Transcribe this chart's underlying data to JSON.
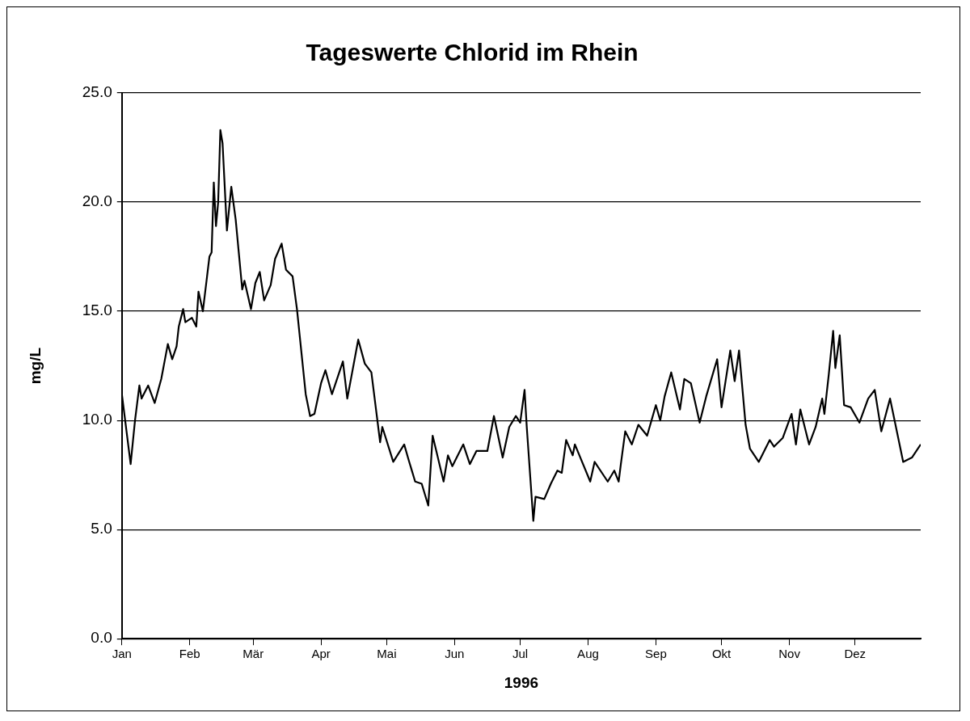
{
  "chart_data": {
    "type": "line",
    "title": "Tageswerte Chlorid im Rhein",
    "xlabel": "1996",
    "ylabel": "mg/L",
    "xlim": [
      "1996-01-01",
      "1996-12-31"
    ],
    "xticks": [
      {
        "value": "1996-01-01",
        "label": "Jan"
      },
      {
        "value": "1996-02-01",
        "label": "Feb"
      },
      {
        "value": "1996-03-01",
        "label": "Mär"
      },
      {
        "value": "1996-04-01",
        "label": "Apr"
      },
      {
        "value": "1996-05-01",
        "label": "Mai"
      },
      {
        "value": "1996-06-01",
        "label": "Jun"
      },
      {
        "value": "1996-07-01",
        "label": "Jul"
      },
      {
        "value": "1996-08-01",
        "label": "Aug"
      },
      {
        "value": "1996-09-01",
        "label": "Sep"
      },
      {
        "value": "1996-10-01",
        "label": "Okt"
      },
      {
        "value": "1996-11-01",
        "label": "Nov"
      },
      {
        "value": "1996-12-01",
        "label": "Dez"
      }
    ],
    "ylim": [
      0,
      25
    ],
    "yticks": [
      {
        "value": 0,
        "label": "0.0"
      },
      {
        "value": 5,
        "label": "5.0"
      },
      {
        "value": 10,
        "label": "10.0"
      },
      {
        "value": 15,
        "label": "15.0"
      },
      {
        "value": 20,
        "label": "20.0"
      },
      {
        "value": 25,
        "label": "25.0"
      }
    ],
    "grid": "y",
    "legend": false,
    "marker": "none",
    "line_style": "solid",
    "series": [
      {
        "color": "#000000",
        "x": [
          "1996-01-01",
          "1996-01-05",
          "1996-01-07",
          "1996-01-09",
          "1996-01-10",
          "1996-01-13",
          "1996-01-16",
          "1996-01-19",
          "1996-01-22",
          "1996-01-24",
          "1996-01-26",
          "1996-01-27",
          "1996-01-29",
          "1996-01-30",
          "1996-02-02",
          "1996-02-04",
          "1996-02-05",
          "1996-02-07",
          "1996-02-10",
          "1996-02-11",
          "1996-02-12",
          "1996-02-13",
          "1996-02-14",
          "1996-02-15",
          "1996-02-16",
          "1996-02-18",
          "1996-02-19",
          "1996-02-20",
          "1996-02-22",
          "1996-02-25",
          "1996-02-26",
          "1996-02-29",
          "1996-03-02",
          "1996-03-04",
          "1996-03-06",
          "1996-03-09",
          "1996-03-11",
          "1996-03-14",
          "1996-03-16",
          "1996-03-19",
          "1996-03-21",
          "1996-03-25",
          "1996-03-27",
          "1996-03-29",
          "1996-04-01",
          "1996-04-03",
          "1996-04-06",
          "1996-04-11",
          "1996-04-13",
          "1996-04-18",
          "1996-04-21",
          "1996-04-24",
          "1996-04-28",
          "1996-04-29",
          "1996-05-04",
          "1996-05-09",
          "1996-05-11",
          "1996-05-14",
          "1996-05-17",
          "1996-05-20",
          "1996-05-22",
          "1996-05-27",
          "1996-05-29",
          "1996-05-31",
          "1996-06-05",
          "1996-06-08",
          "1996-06-11",
          "1996-06-16",
          "1996-06-19",
          "1996-06-23",
          "1996-06-26",
          "1996-06-29",
          "1996-07-01",
          "1996-07-03",
          "1996-07-04",
          "1996-07-07",
          "1996-07-08",
          "1996-07-12",
          "1996-07-15",
          "1996-07-18",
          "1996-07-20",
          "1996-07-22",
          "1996-07-25",
          "1996-07-26",
          "1996-08-02",
          "1996-08-04",
          "1996-08-10",
          "1996-08-13",
          "1996-08-15",
          "1996-08-16",
          "1996-08-18",
          "1996-08-21",
          "1996-08-24",
          "1996-08-28",
          "1996-09-01",
          "1996-09-03",
          "1996-09-05",
          "1996-09-08",
          "1996-09-12",
          "1996-09-14",
          "1996-09-17",
          "1996-09-21",
          "1996-09-24",
          "1996-09-29",
          "1996-10-01",
          "1996-10-05",
          "1996-10-07",
          "1996-10-09",
          "1996-10-12",
          "1996-10-14",
          "1996-10-18",
          "1996-10-23",
          "1996-10-25",
          "1996-10-29",
          "1996-11-02",
          "1996-11-04",
          "1996-11-06",
          "1996-11-10",
          "1996-11-13",
          "1996-11-16",
          "1996-11-17",
          "1996-11-19",
          "1996-11-21",
          "1996-11-22",
          "1996-11-24",
          "1996-11-26",
          "1996-11-29",
          "1996-12-03",
          "1996-12-07",
          "1996-12-10",
          "1996-12-13",
          "1996-12-17",
          "1996-12-23",
          "1996-12-27",
          "1996-12-31"
        ],
        "values": [
          11.2,
          8.0,
          10.0,
          11.6,
          11.0,
          11.6,
          10.8,
          11.9,
          13.5,
          12.8,
          13.4,
          14.3,
          15.1,
          14.5,
          14.7,
          14.3,
          15.9,
          15.0,
          17.5,
          17.7,
          20.9,
          18.9,
          20.0,
          23.3,
          22.7,
          18.7,
          19.7,
          20.7,
          19.2,
          16.0,
          16.4,
          15.1,
          16.3,
          16.8,
          15.5,
          16.2,
          17.4,
          18.1,
          16.9,
          16.6,
          15.1,
          11.2,
          10.2,
          10.3,
          11.7,
          12.3,
          11.2,
          12.7,
          11.0,
          13.7,
          12.6,
          12.2,
          9.0,
          9.7,
          8.1,
          8.9,
          8.2,
          7.2,
          7.1,
          6.1,
          9.3,
          7.2,
          8.4,
          7.9,
          8.9,
          8.0,
          8.6,
          8.6,
          10.2,
          8.3,
          9.7,
          10.2,
          9.9,
          11.4,
          9.7,
          5.4,
          6.5,
          6.4,
          7.1,
          7.7,
          7.6,
          9.1,
          8.4,
          8.9,
          7.2,
          8.1,
          7.2,
          7.7,
          7.2,
          8.0,
          9.5,
          8.9,
          9.8,
          9.3,
          10.7,
          10.0,
          11.1,
          12.2,
          10.5,
          11.9,
          11.7,
          9.9,
          11.1,
          12.8,
          10.6,
          13.2,
          11.8,
          13.2,
          9.8,
          8.7,
          8.1,
          9.1,
          8.8,
          9.2,
          10.3,
          8.9,
          10.5,
          8.9,
          9.7,
          11.0,
          10.3,
          12.1,
          14.1,
          12.4,
          13.9,
          10.7,
          10.6,
          9.9,
          11.0,
          11.4,
          9.5,
          11.0,
          8.1,
          8.3,
          8.9
        ]
      }
    ]
  }
}
